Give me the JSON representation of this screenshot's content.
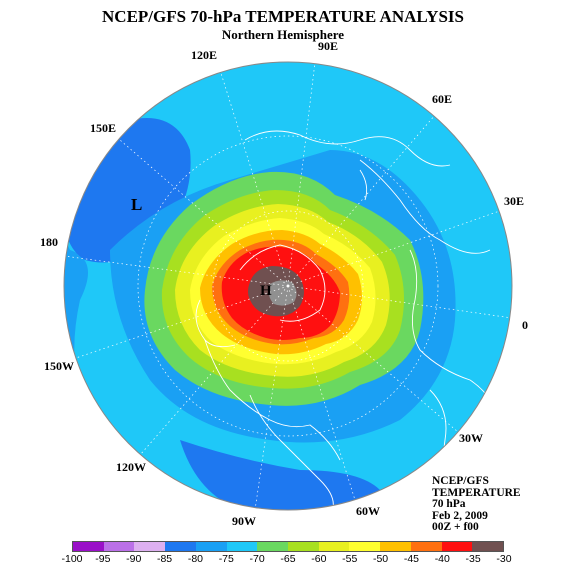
{
  "title": "NCEP/GFS 70-hPa TEMPERATURE ANALYSIS",
  "subtitle": "Northern Hemisphere",
  "longitude_labels": [
    "90E",
    "60E",
    "30E",
    "0",
    "30W",
    "60W",
    "90W",
    "120W",
    "150W",
    "180",
    "150E",
    "120E"
  ],
  "markers": {
    "low": "L",
    "high": "H"
  },
  "info_block": [
    "NCEP/GFS",
    "TEMPERATURE",
    "70 hPa",
    "Feb 2, 2009",
    "00Z + f00"
  ],
  "legend": {
    "ticks": [
      "-100",
      "-95",
      "-90",
      "-85",
      "-80",
      "-75",
      "-70",
      "-65",
      "-60",
      "-55",
      "-50",
      "-45",
      "-40",
      "-35",
      "-30"
    ],
    "colors": [
      "#9a10c8",
      "#bb70e8",
      "#ddb0f0",
      "#1e78f0",
      "#1aa0f4",
      "#1fc8f8",
      "#6ad860",
      "#a8e020",
      "#e8f020",
      "#ffff30",
      "#ffc000",
      "#ff7010",
      "#ff1010",
      "#705050"
    ]
  },
  "colors": {
    "ocean_mid": "#1aa0f4",
    "outer_band": "#1fc8f8",
    "deep_blue": "#1e78f0",
    "coastline": "#ffffff"
  }
}
